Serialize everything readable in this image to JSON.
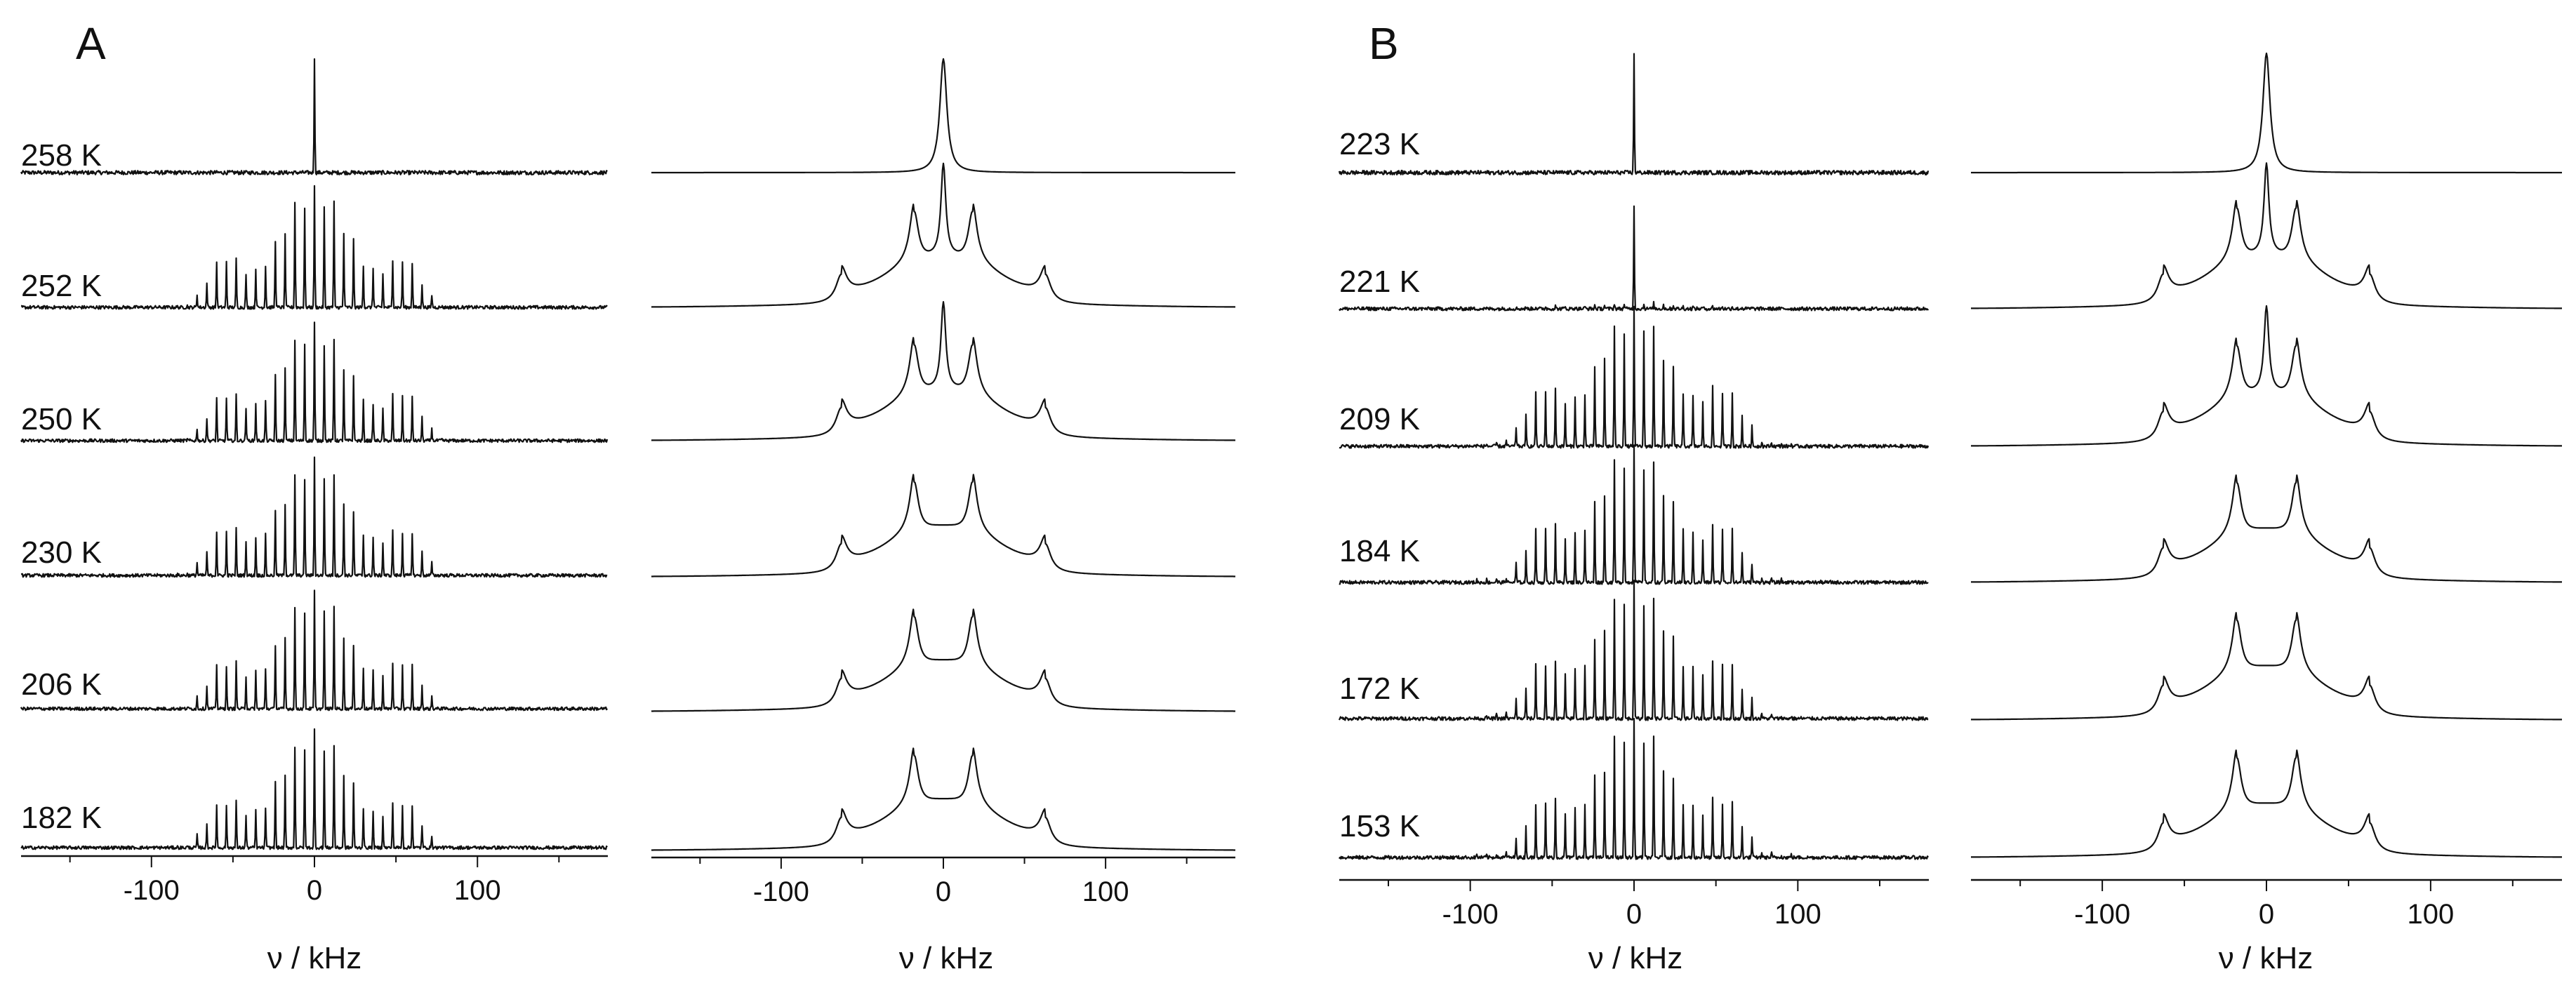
{
  "figure": {
    "panels": [
      {
        "letter": "A",
        "temperatures": [
          "258 K",
          "252 K",
          "250 K",
          "230 K",
          "206 K",
          "182 K"
        ]
      },
      {
        "letter": "B",
        "temperatures": [
          "223 K",
          "221 K",
          "209 K",
          "184 K",
          "172 K",
          "153 K"
        ]
      }
    ],
    "axis_title": "ν / kHz",
    "colors": {
      "line": "#111111",
      "background": "#ffffff"
    }
  },
  "chart_data": [
    {
      "type": "line",
      "panel": "A",
      "column": "left",
      "kind": "MAS spinning sideband spectra",
      "xlabel": "ν / kHz",
      "xlim": [
        -180,
        180
      ],
      "xticks": [
        -100,
        0,
        100
      ],
      "spinning_rate_khz": 6,
      "series": [
        {
          "name": "258 K",
          "pattern": "isotropic",
          "height": 1.0
        },
        {
          "name": "252 K",
          "pattern": "spinning-sidebands-partial",
          "height": 0.85
        },
        {
          "name": "250 K",
          "pattern": "spinning-sidebands",
          "height": 0.82
        },
        {
          "name": "230 K",
          "pattern": "spinning-sidebands",
          "height": 0.82
        },
        {
          "name": "206 K",
          "pattern": "spinning-sidebands",
          "height": 0.82
        },
        {
          "name": "182 K",
          "pattern": "spinning-sidebands",
          "height": 0.82
        }
      ]
    },
    {
      "type": "line",
      "panel": "A",
      "column": "right",
      "kind": "static powder spectra",
      "xlabel": "ν / kHz",
      "xlim": [
        -180,
        180
      ],
      "xticks": [
        -100,
        0,
        100
      ],
      "pake_horns_khz": [
        -18,
        18
      ],
      "shoulders_khz": [
        -63,
        63
      ],
      "series": [
        {
          "name": "258 K",
          "pattern": "isotropic",
          "height": 1.0
        },
        {
          "name": "252 K",
          "pattern": "pake-with-center",
          "center_fraction": 0.9
        },
        {
          "name": "250 K",
          "pattern": "pake-with-center",
          "center_fraction": 0.85
        },
        {
          "name": "230 K",
          "pattern": "pake"
        },
        {
          "name": "206 K",
          "pattern": "pake"
        },
        {
          "name": "182 K",
          "pattern": "pake"
        }
      ]
    },
    {
      "type": "line",
      "panel": "B",
      "column": "left",
      "kind": "MAS spinning sideband spectra",
      "xlabel": "ν / kHz",
      "xlim": [
        -180,
        180
      ],
      "xticks": [
        -100,
        0,
        100
      ],
      "spinning_rate_khz": 6,
      "series": [
        {
          "name": "223 K",
          "pattern": "isotropic",
          "height": 1.0
        },
        {
          "name": "221 K",
          "pattern": "isotropic-with-small-sidebands",
          "height": 0.85
        },
        {
          "name": "209 K",
          "pattern": "spinning-sidebands-broad",
          "height": 0.85
        },
        {
          "name": "184 K",
          "pattern": "spinning-sidebands-broad",
          "height": 0.85
        },
        {
          "name": "172 K",
          "pattern": "spinning-sidebands-broad",
          "height": 0.85
        },
        {
          "name": "153 K",
          "pattern": "spinning-sidebands-broad",
          "height": 0.85
        }
      ]
    },
    {
      "type": "line",
      "panel": "B",
      "column": "right",
      "kind": "static powder spectra",
      "xlabel": "ν / kHz",
      "xlim": [
        -180,
        180
      ],
      "xticks": [
        -100,
        0,
        100
      ],
      "pake_horns_khz": [
        -18,
        18
      ],
      "shoulders_khz": [
        -63,
        63
      ],
      "series": [
        {
          "name": "223 K",
          "pattern": "isotropic",
          "height": 1.0
        },
        {
          "name": "221 K",
          "pattern": "pake-with-center",
          "center_fraction": 0.85
        },
        {
          "name": "209 K",
          "pattern": "pake-with-center",
          "center_fraction": 0.8
        },
        {
          "name": "184 K",
          "pattern": "pake"
        },
        {
          "name": "172 K",
          "pattern": "pake"
        },
        {
          "name": "153 K",
          "pattern": "pake"
        }
      ]
    }
  ]
}
